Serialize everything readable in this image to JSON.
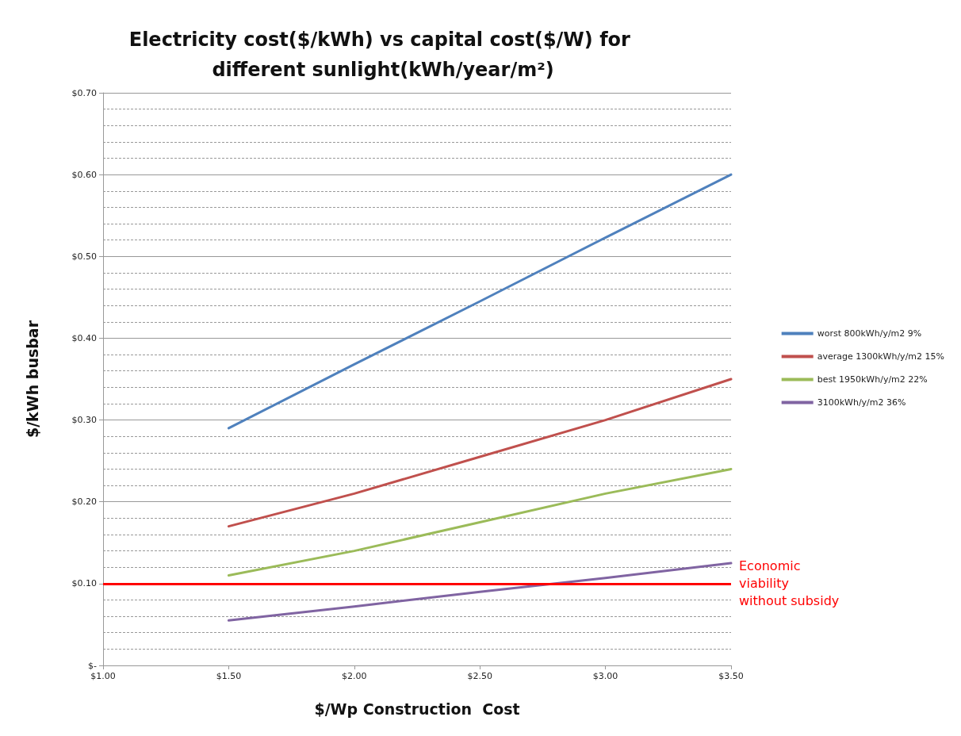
{
  "chart_data": {
    "type": "line",
    "title": "Electricity cost($/kWh) vs capital cost($/W) for different sunlight(kWh/year/m²)",
    "xlabel": "$/Wp Construction  Cost",
    "ylabel": "$/kWh busbar",
    "xlim": [
      1.0,
      3.5
    ],
    "xticks": [
      {
        "value": 1.0,
        "label": "$1.00"
      },
      {
        "value": 1.5,
        "label": "$1.50"
      },
      {
        "value": 2.0,
        "label": "$2.00"
      },
      {
        "value": 2.5,
        "label": "$2.50"
      },
      {
        "value": 3.0,
        "label": "$3.00"
      },
      {
        "value": 3.5,
        "label": "$3.50"
      }
    ],
    "ylim": [
      0,
      0.7
    ],
    "yticks": [
      {
        "value": 0,
        "label": "$-"
      },
      {
        "value": 0.02,
        "label": null
      },
      {
        "value": 0.04,
        "label": null
      },
      {
        "value": 0.06,
        "label": null
      },
      {
        "value": 0.08,
        "label": null
      },
      {
        "value": 0.1,
        "label": "$0.10"
      },
      {
        "value": 0.12,
        "label": null
      },
      {
        "value": 0.14,
        "label": null
      },
      {
        "value": 0.16,
        "label": null
      },
      {
        "value": 0.18,
        "label": null
      },
      {
        "value": 0.2,
        "label": "$0.20"
      },
      {
        "value": 0.22,
        "label": null
      },
      {
        "value": 0.24,
        "label": null
      },
      {
        "value": 0.26,
        "label": null
      },
      {
        "value": 0.28,
        "label": null
      },
      {
        "value": 0.3,
        "label": "$0.30"
      },
      {
        "value": 0.32,
        "label": null
      },
      {
        "value": 0.34,
        "label": null
      },
      {
        "value": 0.36,
        "label": null
      },
      {
        "value": 0.38,
        "label": null
      },
      {
        "value": 0.4,
        "label": "$0.40"
      },
      {
        "value": 0.42,
        "label": null
      },
      {
        "value": 0.44,
        "label": null
      },
      {
        "value": 0.46,
        "label": null
      },
      {
        "value": 0.48,
        "label": null
      },
      {
        "value": 0.5,
        "label": "$0.50"
      },
      {
        "value": 0.52,
        "label": null
      },
      {
        "value": 0.54,
        "label": null
      },
      {
        "value": 0.56,
        "label": null
      },
      {
        "value": 0.58,
        "label": null
      },
      {
        "value": 0.6,
        "label": "$0.60"
      },
      {
        "value": 0.62,
        "label": null
      },
      {
        "value": 0.64,
        "label": null
      },
      {
        "value": 0.66,
        "label": null
      },
      {
        "value": 0.68,
        "label": null
      },
      {
        "value": 0.7,
        "label": "$0.70"
      }
    ],
    "grid": "y",
    "legend": "right",
    "marker": "none",
    "line_style": "solid",
    "series": [
      {
        "name": "worst 800kWh/y/m2 9%",
        "color": "#4f81bd",
        "x": [
          1.5,
          2.0,
          2.5,
          3.0,
          3.5
        ],
        "values": [
          0.29,
          0.368,
          0.445,
          0.523,
          0.6
        ]
      },
      {
        "name": "average 1300kWh/y/m2 15%",
        "color": "#c0504d",
        "x": [
          1.5,
          2.0,
          2.5,
          3.0,
          3.5
        ],
        "values": [
          0.17,
          0.21,
          0.255,
          0.3,
          0.35
        ]
      },
      {
        "name": "best 1950kWh/y/m2 22%",
        "color": "#9bbb59",
        "x": [
          1.5,
          2.0,
          2.5,
          3.0,
          3.5
        ],
        "values": [
          0.11,
          0.14,
          0.175,
          0.21,
          0.24
        ]
      },
      {
        "name": "3100kWh/y/m2 36%",
        "color": "#8064a2",
        "x": [
          1.5,
          2.0,
          2.5,
          3.0,
          3.5
        ],
        "values": [
          0.055,
          0.072,
          0.09,
          0.107,
          0.125
        ]
      }
    ],
    "ref_lines": [
      {
        "axis": "y",
        "value": 0.1,
        "label": "Economic viability without subsidy",
        "color": "#ff0000",
        "line_style": "solid"
      }
    ]
  }
}
